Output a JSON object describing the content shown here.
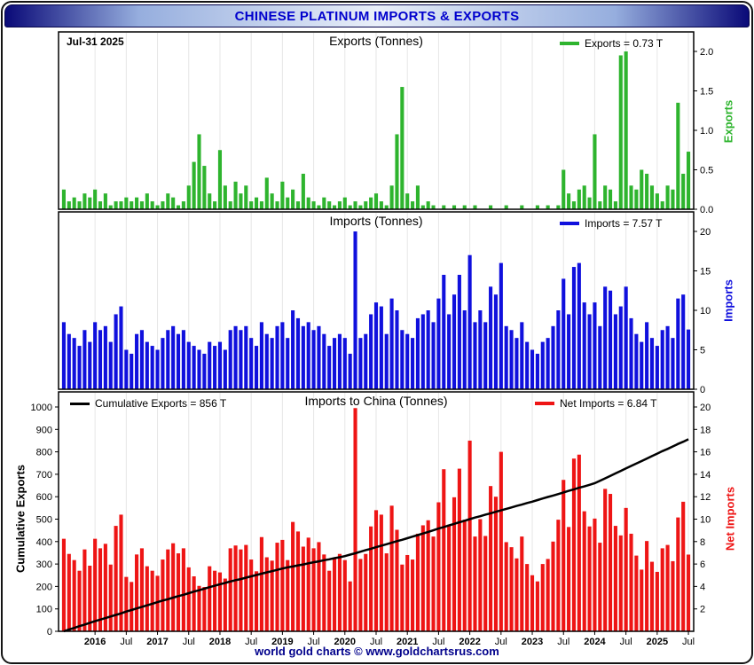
{
  "header": {
    "title": "CHINESE PLATINUM IMPORTS & EXPORTS",
    "text_color": "#0000cd"
  },
  "date_label": "Jul-31  2025",
  "footer": {
    "text": "world gold charts © www.goldchartsrus.com",
    "text_color": "#00008b"
  },
  "colors": {
    "exports": "#2eb42e",
    "imports": "#1010dd",
    "net": "#ee1515",
    "cumulative": "#000000",
    "header_text": "#0000cd",
    "footer_text": "#00008b"
  },
  "x_axis": {
    "tick_labels": [
      "2016",
      "Jul",
      "2017",
      "Jul",
      "2018",
      "Jul",
      "2019",
      "Jul",
      "2020",
      "Jul",
      "2021",
      "Jul",
      "2022",
      "Jul",
      "2023",
      "Jul",
      "2024",
      "Jul",
      "2025",
      "Jul"
    ],
    "tick_month_indices": [
      6,
      12,
      18,
      24,
      30,
      36,
      42,
      48,
      54,
      60,
      66,
      72,
      78,
      84,
      90,
      96,
      102,
      108,
      114,
      120
    ],
    "months_total": 121
  },
  "chart_data": [
    {
      "type": "bar",
      "title": "Exports (Tonnes)",
      "legend": "Exports = 0.73 T",
      "axis_label": "Exports",
      "axis_side": "right",
      "ylim": [
        0,
        2.0
      ],
      "yticks": [
        "0.0",
        "0.5",
        "1.0",
        "1.5",
        "2.0"
      ],
      "values": [
        0.25,
        0.1,
        0.15,
        0.1,
        0.2,
        0.15,
        0.25,
        0.1,
        0.2,
        0.05,
        0.1,
        0.1,
        0.15,
        0.1,
        0.15,
        0.1,
        0.2,
        0.1,
        0.05,
        0.1,
        0.2,
        0.15,
        0.05,
        0.1,
        0.3,
        0.6,
        0.95,
        0.55,
        0.2,
        0.1,
        0.75,
        0.3,
        0.1,
        0.35,
        0.2,
        0.3,
        0.1,
        0.15,
        0.1,
        0.4,
        0.2,
        0.1,
        0.35,
        0.15,
        0.25,
        0.1,
        0.45,
        0.15,
        0.1,
        0.05,
        0.15,
        0.1,
        0.05,
        0.1,
        0.15,
        0.05,
        0.1,
        0.05,
        0.1,
        0.15,
        0.2,
        0.1,
        0.05,
        0.3,
        0.95,
        1.55,
        0.2,
        0.1,
        0.3,
        0.05,
        0.1,
        0.05,
        0,
        0.05,
        0,
        0.05,
        0,
        0.05,
        0,
        0.05,
        0,
        0,
        0.05,
        0,
        0,
        0.05,
        0,
        0,
        0.05,
        0,
        0,
        0.05,
        0,
        0.05,
        0,
        0.05,
        0.5,
        0.2,
        0.1,
        0.25,
        0.3,
        0.15,
        0.95,
        0.1,
        0.3,
        0.25,
        0.1,
        1.95,
        2.0,
        0.3,
        0.25,
        0.5,
        0.45,
        0.3,
        0.2,
        0.1,
        0.3,
        0.25,
        1.35,
        0.45,
        0.73
      ]
    },
    {
      "type": "bar",
      "title": "Imports (Tonnes)",
      "legend": "Imports = 7.57 T",
      "axis_label": "Imports",
      "axis_side": "right",
      "ylim": [
        0,
        20
      ],
      "yticks": [
        "0",
        "5",
        "10",
        "15",
        "20"
      ],
      "values": [
        8.5,
        7,
        6.5,
        5.5,
        7.5,
        6,
        8.5,
        7.5,
        8,
        6,
        9.5,
        10.5,
        5,
        4.5,
        7,
        7.5,
        6,
        5.5,
        5,
        6.5,
        7.5,
        8,
        7,
        7.5,
        6,
        5.5,
        5,
        4.5,
        6,
        5.5,
        6,
        5,
        7.5,
        8,
        7.5,
        8,
        6.5,
        5.5,
        8.5,
        7,
        6.5,
        8,
        8.5,
        6.5,
        10,
        9,
        8,
        8.5,
        7.5,
        8,
        7,
        5.5,
        6.5,
        7,
        6.5,
        4.5,
        20,
        6.5,
        7,
        9.5,
        11,
        10.5,
        7,
        11.5,
        10,
        7.5,
        7,
        6.5,
        9,
        9.5,
        10,
        8.5,
        11.5,
        14.5,
        9.5,
        12,
        14.5,
        10,
        17,
        8.5,
        10,
        8.5,
        13,
        12,
        16,
        8,
        7.5,
        6.5,
        8.5,
        6,
        5,
        4.5,
        6,
        6.5,
        8,
        10,
        14,
        9.5,
        15.5,
        16,
        11,
        9.5,
        11,
        8,
        13,
        12.5,
        9.5,
        10.5,
        13,
        9,
        7,
        6,
        8.5,
        6.5,
        5.5,
        7.5,
        8,
        6.5,
        11.5,
        12,
        7.57
      ]
    },
    {
      "type": "bar+line",
      "title": "Imports to China (Tonnes)",
      "bar_legend": "Net Imports = 6.84 T",
      "line_legend": "Cumulative Exports  = 856 T",
      "left_axis_label": "Cumulative Exports",
      "right_axis_label": "Net Imports",
      "left_ylim": [
        0,
        1000
      ],
      "left_yticks": [
        "0",
        "100",
        "200",
        "300",
        "400",
        "500",
        "600",
        "700",
        "800",
        "900",
        "1000"
      ],
      "right_ylim": [
        0,
        20
      ],
      "right_yticks": [
        "2",
        "4",
        "6",
        "8",
        "10",
        "12",
        "14",
        "16",
        "18",
        "20"
      ],
      "bar_values": [
        8.25,
        6.9,
        6.35,
        5.4,
        7.3,
        5.85,
        8.25,
        7.4,
        7.8,
        5.95,
        9.4,
        10.4,
        4.85,
        4.4,
        6.85,
        7.4,
        5.8,
        5.4,
        4.95,
        6.4,
        7.3,
        7.85,
        6.95,
        7.4,
        5.7,
        4.9,
        4.05,
        3.95,
        5.8,
        5.4,
        5.25,
        4.7,
        7.4,
        7.65,
        7.3,
        7.7,
        6.4,
        5.35,
        8.4,
        6.6,
        6.3,
        7.9,
        8.15,
        6.35,
        9.75,
        8.9,
        7.55,
        8.35,
        7.4,
        7.95,
        6.85,
        5.4,
        6.45,
        6.9,
        6.35,
        4.45,
        19.9,
        6.45,
        6.9,
        9.35,
        10.8,
        10.4,
        6.95,
        11.2,
        9.05,
        5.95,
        6.8,
        6.4,
        8.7,
        9.45,
        9.9,
        8.45,
        11.5,
        14.45,
        9.5,
        11.95,
        14.5,
        9.95,
        17,
        8.45,
        10,
        8.5,
        12.95,
        12,
        16,
        7.95,
        7.5,
        6.5,
        8.45,
        6,
        5,
        4.45,
        6,
        6.45,
        8,
        9.95,
        13.5,
        9.3,
        15.4,
        15.75,
        10.7,
        9.35,
        10.05,
        7.9,
        12.7,
        12.25,
        9.4,
        8.55,
        11,
        8.7,
        6.75,
        5.5,
        8.05,
        6.2,
        5.3,
        7.4,
        7.7,
        6.25,
        10.15,
        11.55,
        6.84
      ],
      "line_values": [
        0,
        8,
        15,
        23,
        30,
        38,
        45,
        52,
        59,
        66,
        73,
        80,
        88,
        95,
        102,
        109,
        116,
        123,
        130,
        137,
        143,
        150,
        157,
        163,
        170,
        177,
        183,
        190,
        197,
        203,
        210,
        216,
        222,
        228,
        233,
        239,
        245,
        251,
        257,
        263,
        268,
        274,
        280,
        285,
        289,
        294,
        298,
        303,
        308,
        312,
        317,
        321,
        326,
        330,
        335,
        342,
        348,
        355,
        362,
        368,
        375,
        382,
        388,
        395,
        402,
        408,
        415,
        422,
        429,
        436,
        443,
        450,
        458,
        465,
        472,
        479,
        486,
        493,
        500,
        507,
        513,
        520,
        526,
        533,
        539,
        546,
        552,
        559,
        565,
        572,
        578,
        585,
        592,
        599,
        605,
        612,
        619,
        626,
        633,
        640,
        646,
        653,
        660,
        671,
        682,
        693,
        704,
        715,
        726,
        737,
        748,
        759,
        770,
        781,
        792,
        803,
        813,
        824,
        835,
        845,
        856
      ]
    }
  ]
}
